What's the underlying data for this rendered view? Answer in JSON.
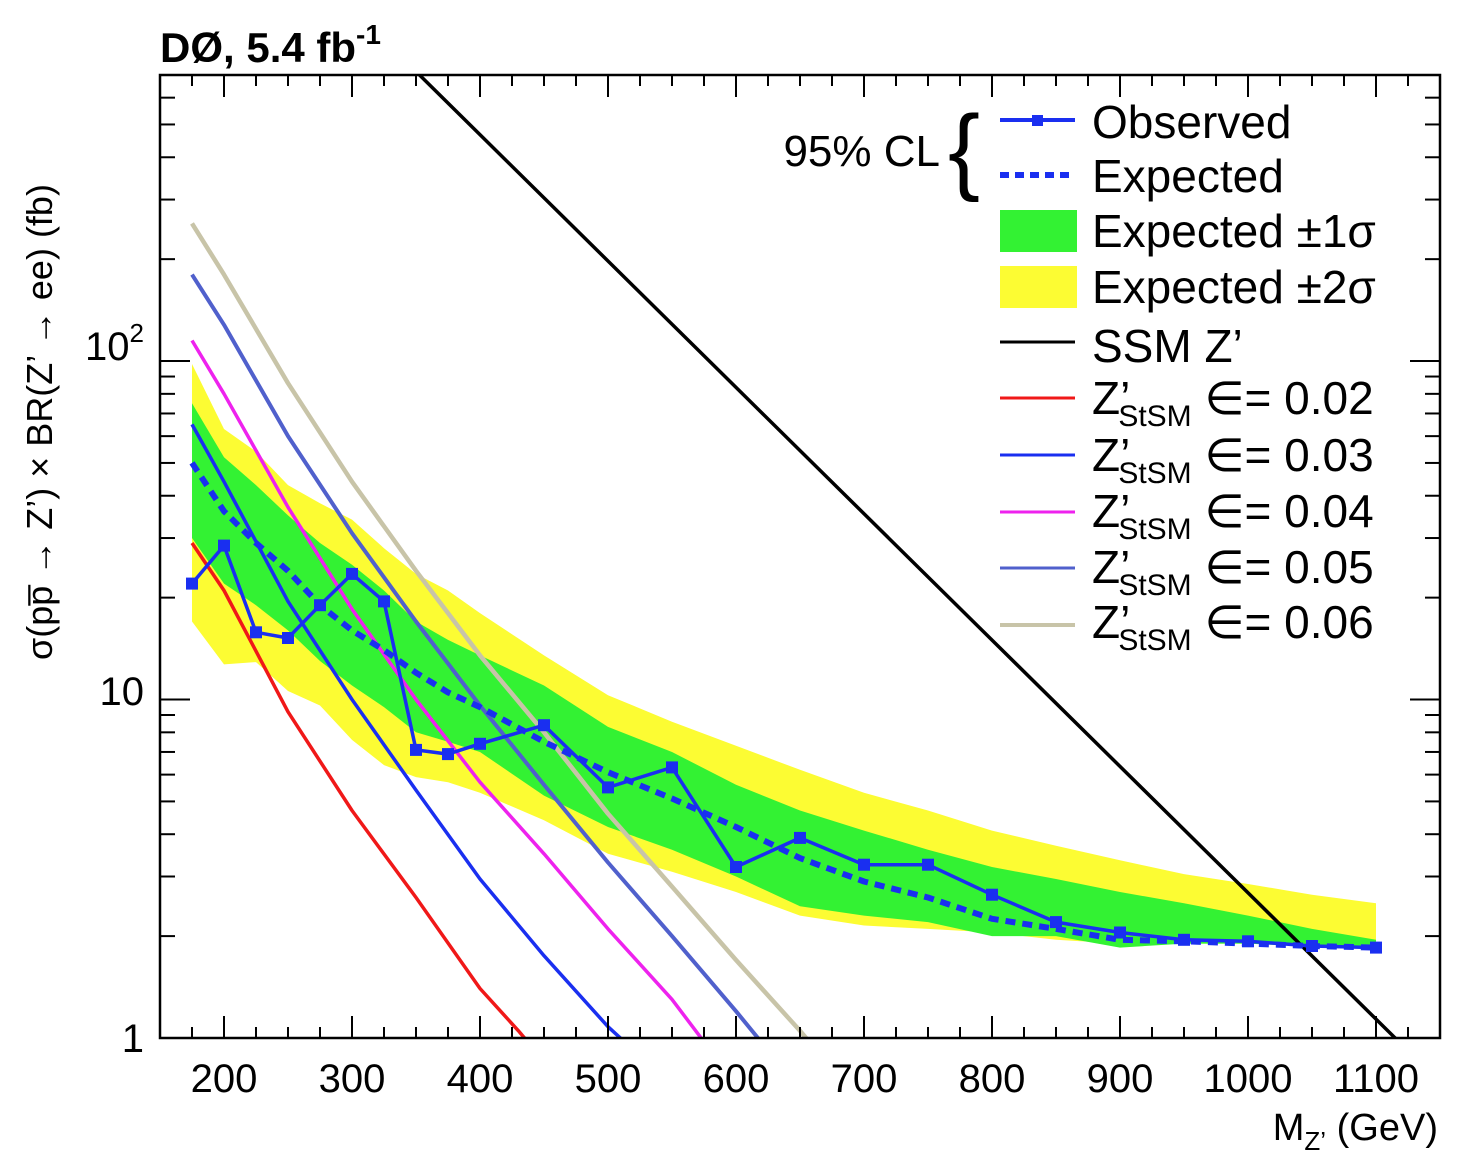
{
  "chart_data": {
    "type": "line",
    "title": "DØ, 5.4 fb",
    "title_sup": "-1",
    "xlabel": {
      "main": "M",
      "sub": "Z’",
      "rest": " (GeV)"
    },
    "ylabel": "σ(pp̅ → Z’) × BR(Z’ → ee) (fb)",
    "xlim": [
      150,
      1150
    ],
    "ylim": [
      1,
      700
    ],
    "yscale": "log",
    "x_ticks": [
      "200",
      "300",
      "400",
      "500",
      "600",
      "700",
      "800",
      "900",
      "1000",
      "1100"
    ],
    "x_tick_values": [
      200,
      300,
      400,
      500,
      600,
      700,
      800,
      900,
      1000,
      1100
    ],
    "y_ticks": [
      {
        "value": 1,
        "label": "1"
      },
      {
        "value": 10,
        "label": "10"
      },
      {
        "value": 100,
        "label": "10",
        "sup": "2"
      }
    ],
    "legend": {
      "group_label": "95% CL",
      "position": "top-right",
      "entries": [
        {
          "id": "obs",
          "label": "Observed"
        },
        {
          "id": "exp",
          "label": "Expected"
        },
        {
          "id": "b1",
          "label": "Expected ±1σ"
        },
        {
          "id": "b2",
          "label": "Expected ±2σ"
        },
        {
          "id": "ssm",
          "label": "SSM Z’"
        },
        {
          "id": "st02",
          "label": "Z’",
          "sub": "StSM",
          "suffix": " ∈= 0.02"
        },
        {
          "id": "st03",
          "label": "Z’",
          "sub": "StSM",
          "suffix": " ∈= 0.03"
        },
        {
          "id": "st04",
          "label": "Z’",
          "sub": "StSM",
          "suffix": " ∈= 0.04"
        },
        {
          "id": "st05",
          "label": "Z’",
          "sub": "StSM",
          "suffix": " ∈= 0.05"
        },
        {
          "id": "st06",
          "label": "Z’",
          "sub": "StSM",
          "suffix": " ∈= 0.06"
        }
      ]
    },
    "colors": {
      "observed": "#1a2ff0",
      "expected": "#1a2ff0",
      "band1": "#33f233",
      "band2": "#fcfc33",
      "ssm": "#000000",
      "st02": "#f01818",
      "st03": "#1a2ff0",
      "st04": "#ee22ee",
      "st05": "#5060cc",
      "st06": "#c8c4a8"
    },
    "band2": {
      "x": [
        175,
        200,
        225,
        250,
        275,
        300,
        325,
        350,
        375,
        400,
        450,
        500,
        550,
        600,
        650,
        700,
        750,
        800,
        850,
        900,
        950,
        1000,
        1050,
        1100
      ],
      "low": [
        17,
        12.7,
        12.9,
        10.6,
        9.6,
        7.6,
        6.4,
        5.9,
        5.7,
        5.3,
        4.4,
        3.5,
        3.1,
        2.7,
        2.3,
        2.15,
        2.1,
        2.05,
        1.95,
        1.9,
        1.9,
        1.9,
        1.88,
        1.86
      ],
      "high": [
        98,
        63,
        54,
        43,
        38,
        34,
        28,
        23.5,
        21,
        18,
        13.5,
        10.3,
        8.6,
        7.3,
        6.2,
        5.3,
        4.7,
        4.1,
        3.7,
        3.35,
        3.05,
        2.85,
        2.65,
        2.5
      ]
    },
    "band1": {
      "x": [
        175,
        200,
        225,
        250,
        275,
        300,
        325,
        350,
        375,
        400,
        450,
        500,
        550,
        600,
        650,
        700,
        750,
        800,
        850,
        900,
        950,
        1000,
        1050,
        1100
      ],
      "low": [
        30,
        22,
        19,
        16,
        13,
        11,
        9.5,
        8,
        7.5,
        7,
        5.2,
        4.2,
        3.6,
        3.0,
        2.45,
        2.3,
        2.2,
        2.0,
        2.0,
        1.85,
        1.9,
        1.9,
        1.86,
        1.84
      ],
      "high": [
        75,
        52,
        43,
        35,
        29,
        25,
        21,
        17,
        15,
        13.5,
        11,
        8.3,
        7.0,
        5.6,
        4.7,
        4.1,
        3.6,
        3.2,
        2.95,
        2.7,
        2.5,
        2.3,
        2.1,
        1.95
      ]
    },
    "series": [
      {
        "id": "ssm",
        "name": "SSM Z’",
        "x": [
          150,
          1150
        ],
        "y": [
          4000,
          0.74
        ]
      },
      {
        "id": "st02",
        "name": "Z’StSM ∈= 0.02",
        "x": [
          175,
          200,
          250,
          300,
          350,
          400,
          430,
          445
        ],
        "y": [
          29,
          21,
          9.2,
          4.7,
          2.6,
          1.4,
          1.05,
          0.9
        ]
      },
      {
        "id": "st03",
        "name": "Z’StSM ∈= 0.03",
        "x": [
          175,
          200,
          250,
          300,
          350,
          400,
          450,
          500,
          530
        ],
        "y": [
          65,
          44,
          19.5,
          10,
          5.4,
          2.95,
          1.75,
          1.08,
          0.85
        ]
      },
      {
        "id": "st04",
        "name": "Z’StSM ∈= 0.04",
        "x": [
          175,
          200,
          250,
          300,
          350,
          400,
          450,
          500,
          550,
          580
        ],
        "y": [
          115,
          80,
          37,
          18.5,
          10,
          5.7,
          3.5,
          2.1,
          1.3,
          0.92
        ]
      },
      {
        "id": "st05",
        "name": "Z’StSM ∈= 0.05",
        "x": [
          175,
          200,
          250,
          300,
          350,
          400,
          450,
          500,
          550,
          600,
          625
        ],
        "y": [
          180,
          128,
          60,
          31,
          17,
          9.6,
          5.6,
          3.3,
          2.0,
          1.2,
          0.92
        ]
      },
      {
        "id": "st06",
        "name": "Z’StSM ∈= 0.06",
        "x": [
          175,
          200,
          250,
          300,
          350,
          400,
          450,
          500,
          550,
          600,
          650,
          665
        ],
        "y": [
          255,
          180,
          86,
          44,
          24,
          13.5,
          8,
          4.6,
          2.8,
          1.7,
          1.05,
          0.9
        ]
      },
      {
        "id": "exp",
        "name": "Expected",
        "x": [
          175,
          200,
          225,
          250,
          275,
          300,
          325,
          350,
          375,
          400,
          450,
          500,
          550,
          600,
          650,
          700,
          750,
          800,
          850,
          900,
          950,
          1000,
          1050,
          1100
        ],
        "y": [
          50,
          36,
          29,
          24,
          19,
          16,
          14,
          12,
          10.5,
          9.5,
          7.5,
          6.1,
          5.1,
          4.2,
          3.4,
          2.9,
          2.6,
          2.25,
          2.1,
          1.95,
          1.93,
          1.9,
          1.87,
          1.85
        ]
      },
      {
        "id": "obs",
        "name": "Observed",
        "x": [
          175,
          200,
          225,
          250,
          275,
          300,
          325,
          350,
          375,
          400,
          450,
          500,
          550,
          600,
          650,
          700,
          750,
          800,
          850,
          900,
          950,
          1000,
          1050,
          1100
        ],
        "y": [
          22,
          28.5,
          15.8,
          15.2,
          19,
          23.5,
          19.5,
          7.1,
          6.9,
          7.4,
          8.4,
          5.5,
          6.3,
          3.2,
          3.9,
          3.25,
          3.25,
          2.65,
          2.2,
          2.05,
          1.95,
          1.93,
          1.87,
          1.85
        ]
      }
    ]
  }
}
